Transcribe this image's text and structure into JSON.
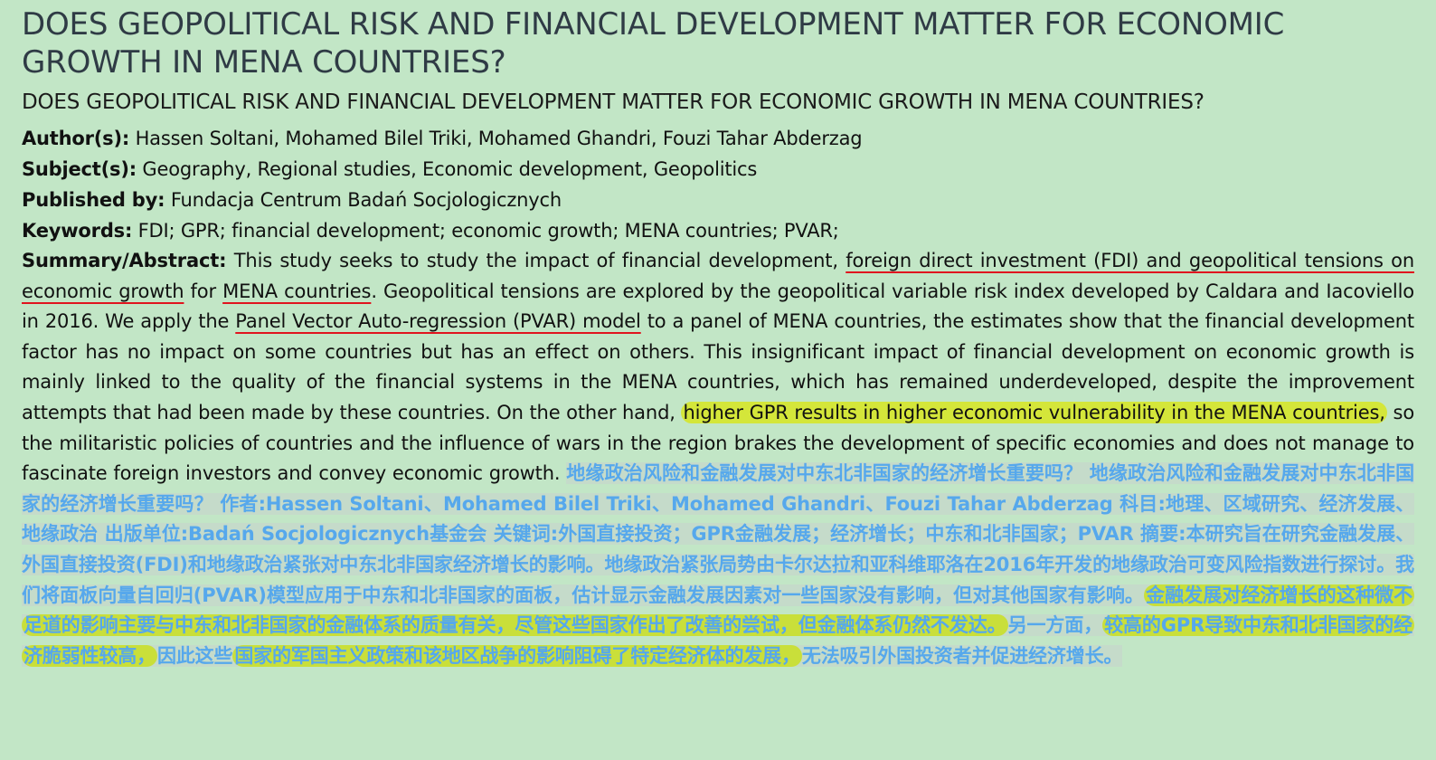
{
  "title": "DOES GEOPOLITICAL RISK AND FINANCIAL DEVELOPMENT MATTER FOR ECONOMIC GROWTH IN MENA COUNTRIES?",
  "subtitle": "DOES GEOPOLITICAL RISK AND FINANCIAL DEVELOPMENT MATTER FOR ECONOMIC GROWTH IN MENA COUNTRIES?",
  "meta": {
    "authors_label": "Author(s):",
    "authors": "Hassen Soltani, Mohamed Bilel Triki, Mohamed Ghandri, Fouzi Tahar Abderzag",
    "subjects_label": "Subject(s):",
    "subjects": "Geography, Regional studies, Economic development, Geopolitics",
    "publisher_label": "Published by:",
    "publisher": "Fundacja Centrum Badań Socjologicznych",
    "keywords_label": "Keywords:",
    "keywords": "FDI; GPR; financial development; economic growth; MENA countries; PVAR;"
  },
  "abstract": {
    "label": "Summary/Abstract:",
    "p1": "This study seeks to study the impact of financial development, ",
    "u1": "foreign direct investment (FDI) and geopolitical tensions on economic growth",
    "p2": " for ",
    "u2": "MENA countries",
    "p3": ". Geopolitical tensions are explored by the geopolitical variable risk index developed by Caldara and Iacoviello in 2016. We apply the ",
    "u3": "Panel Vector Auto-regression (PVAR) model",
    "p4": " to a panel of MENA countries, the estimates show that the financial development factor has no impact on some countries but has an effect on others. This insignificant impact of financial development on economic growth is mainly linked to the quality of the financial systems in the MENA countries, which has remained underdeveloped, despite the improvement attempts that had been made by these countries. On the other hand, ",
    "h1": "higher GPR results in higher economic vulnerability in the MENA countries,",
    "p5": " so the militaristic policies of countries and the influence of wars in the region brakes the development of specific economies and does not manage to fascinate foreign investors and convey economic growth. "
  },
  "translation": {
    "t1": "地缘政治风险和金融发展对中东北非国家的经济增长重要吗？ 地缘政治风险和金融发展对中东北非国家的经济增长重要吗？ 作者:Hassen Soltani、Mohamed Bilel Triki、Mohamed Ghandri、Fouzi Tahar Abderzag 科目:地理、区域研究、经济发展、地缘政治 出版单位:Badań Socjologicznych基金会 关键词:外国直接投资；GPR金融发展；经济增长；中东和北非国家；PVAR 摘要:本研究旨在研究金融发展、外国直接投资(FDI)和地缘政治紧张对中东北非国家经济增长的影响。地缘政治紧张局势由卡尔达拉和亚科维耶洛在2016年开发的地缘政治可变风险指数进行探讨。我们将面板向量自回归(PVAR)模型应用于中东和北非国家的面板，估计显示金融发展因素对一些国家没有影响，但对其他国家有影响。",
    "h1": "金融发展对经济增长的这种微不足道的影响主要与中东和北非国家的金融体系的质量有关，尽管这些国家作出了改善的尝试，但金融体系仍然不发达。",
    "t2": "另一方面，",
    "h2": "较高的GPR导致中东和北非国家的经济脆弱性较高，",
    "t3": "因此这些",
    "h3": "国家的军国主义政策和该地区战争的影响阻碍了特定经济体的发展，",
    "t4": "无法吸引外国投资者并促进经济增长。"
  },
  "colors": {
    "background": "#c2e6c6",
    "underline": "#e0141e",
    "highlight": "#d4e63a",
    "translation_text": "#56a8ec"
  }
}
